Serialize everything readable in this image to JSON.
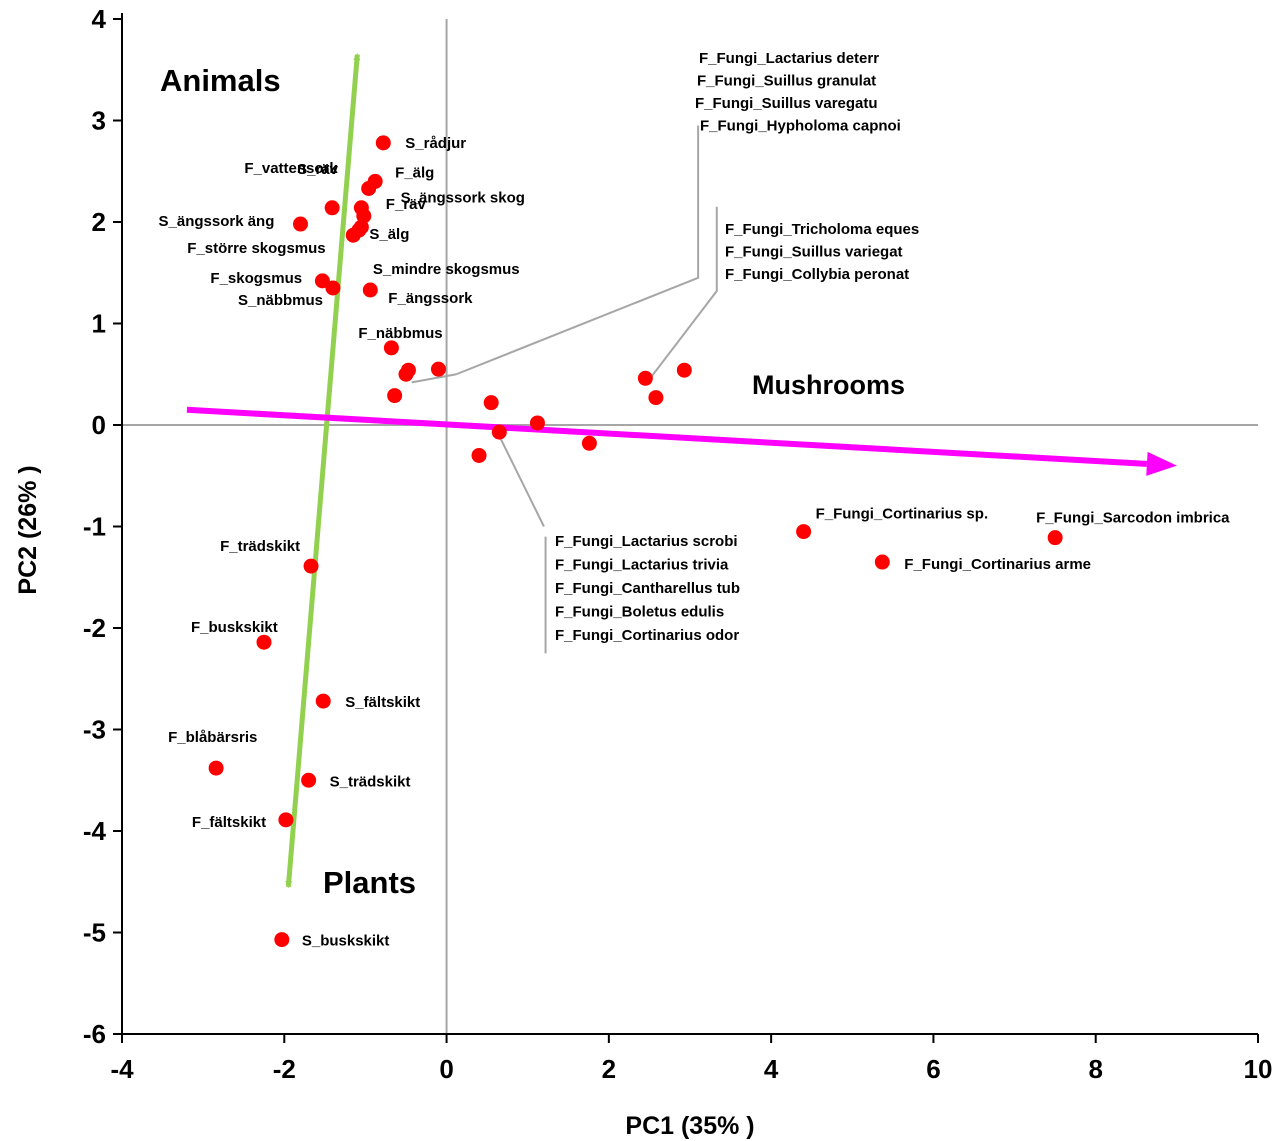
{
  "chart_data": {
    "type": "scatter",
    "xlabel": "PC1 (35% )",
    "ylabel": "PC2 (26% )",
    "xlim": [
      -4,
      10
    ],
    "ylim": [
      -6,
      4
    ],
    "xticks": [
      "-4",
      "-2",
      "0",
      "2",
      "4",
      "6",
      "8",
      "10"
    ],
    "yticks": [
      "4",
      "3",
      "2",
      "1",
      "0",
      "-1",
      "-2",
      "-3",
      "-4",
      "-5",
      "-6"
    ],
    "marker_color": "#ff0000",
    "groups": {
      "animals": "Animals",
      "plants": "Plants",
      "mushrooms": "Mushrooms"
    },
    "vectors": {
      "animals_plants": {
        "color": "#92d050",
        "from": [
          -1.95,
          -4.55
        ],
        "to": [
          -1.1,
          3.65
        ]
      },
      "mushrooms": {
        "color": "#ff00ff",
        "from": [
          -3.2,
          0.15
        ],
        "to": [
          9.0,
          -0.4
        ]
      }
    },
    "points": [
      {
        "label": "S_rådjur",
        "x": -0.78,
        "y": 2.78
      },
      {
        "label": "F_älg",
        "x": -0.88,
        "y": 2.4
      },
      {
        "label": "S_ängssork skog",
        "x": -0.96,
        "y": 2.33
      },
      {
        "label": "S_räv",
        "x": -1.41,
        "y": 2.14
      },
      {
        "label": "F_vattensork",
        "x": -1.05,
        "y": 2.14
      },
      {
        "label": "S_ängssork äng",
        "x": -1.8,
        "y": 1.98
      },
      {
        "label": "F_räv",
        "x": -1.02,
        "y": 2.06
      },
      {
        "label": "S_älg",
        "x": -1.05,
        "y": 1.95
      },
      {
        "label": "F_större skogsmus",
        "x": -1.15,
        "y": 1.87
      },
      {
        "label": "S_mindre skogsmus",
        "x": -1.08,
        "y": 1.92
      },
      {
        "label": "F_skogsmus",
        "x": -1.53,
        "y": 1.42
      },
      {
        "label": "S_näbbmus",
        "x": -1.4,
        "y": 1.35
      },
      {
        "label": "F_ängssork",
        "x": -0.94,
        "y": 1.33
      },
      {
        "label": "F_näbbmus",
        "x": -0.68,
        "y": 0.76
      },
      {
        "label": "",
        "x": -0.5,
        "y": 0.5
      },
      {
        "label": "",
        "x": -0.47,
        "y": 0.54
      },
      {
        "label": "",
        "x": -0.1,
        "y": 0.55
      },
      {
        "label": "",
        "x": -0.64,
        "y": 0.29
      },
      {
        "label": "",
        "x": 0.55,
        "y": 0.22
      },
      {
        "label": "",
        "x": 0.65,
        "y": -0.07
      },
      {
        "label": "",
        "x": 0.4,
        "y": -0.3
      },
      {
        "label": "",
        "x": 1.12,
        "y": 0.02
      },
      {
        "label": "",
        "x": 1.76,
        "y": -0.18
      },
      {
        "label": "",
        "x": 2.45,
        "y": 0.46
      },
      {
        "label": "",
        "x": 2.58,
        "y": 0.27
      },
      {
        "label": "",
        "x": 2.93,
        "y": 0.54
      },
      {
        "label": "F_Fungi_Cortinarius sp.",
        "x": 4.4,
        "y": -1.05
      },
      {
        "label": "F_Fungi_Sarcodon imbrica",
        "x": 7.5,
        "y": -1.11
      },
      {
        "label": "F_Fungi_Cortinarius arme",
        "x": 5.37,
        "y": -1.35
      },
      {
        "label": "F_trädskikt",
        "x": -1.67,
        "y": -1.39
      },
      {
        "label": "F_buskskikt",
        "x": -2.25,
        "y": -2.14
      },
      {
        "label": "S_fältskikt",
        "x": -1.52,
        "y": -2.72
      },
      {
        "label": "F_blåbärsris",
        "x": -2.84,
        "y": -3.38
      },
      {
        "label": "S_trädskikt",
        "x": -1.7,
        "y": -3.5
      },
      {
        "label": "F_fältskikt",
        "x": -1.98,
        "y": -3.89
      },
      {
        "label": "S_buskskikt",
        "x": -2.03,
        "y": -5.07
      }
    ],
    "callouts": [
      {
        "lines": [
          "F_Fungi_Lactarius deterr",
          "F_Fungi_Suillus granulat",
          "F_Fungi_Suillus varegatu",
          "F_Fungi_Hypholoma capnoi"
        ]
      },
      {
        "lines": [
          "F_Fungi_Tricholoma eques",
          "F_Fungi_Suillus variegat",
          "F_Fungi_Collybia peronat"
        ]
      },
      {
        "lines": [
          "F_Fungi_Lactarius scrobi",
          "F_Fungi_Lactarius trivia",
          "F_Fungi_Cantharellus tub",
          "F_Fungi_Boletus edulis",
          "F_Fungi_Cortinarius odor"
        ]
      }
    ]
  }
}
